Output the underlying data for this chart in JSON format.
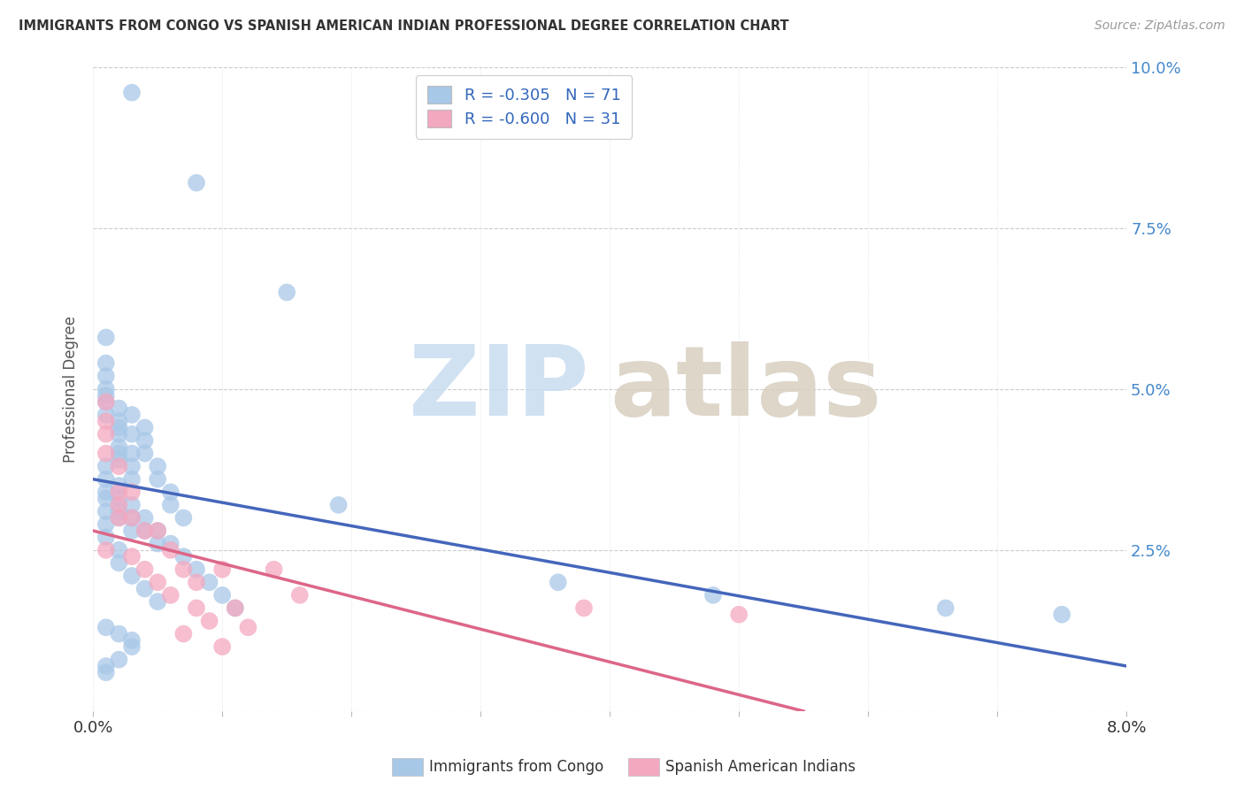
{
  "title": "IMMIGRANTS FROM CONGO VS SPANISH AMERICAN INDIAN PROFESSIONAL DEGREE CORRELATION CHART",
  "source": "Source: ZipAtlas.com",
  "ylabel": "Professional Degree",
  "xlim": [
    0.0,
    0.08
  ],
  "ylim": [
    0.0,
    0.1
  ],
  "xtick_positions": [
    0.0,
    0.01,
    0.02,
    0.03,
    0.04,
    0.05,
    0.06,
    0.07,
    0.08
  ],
  "xtick_labels": [
    "0.0%",
    "",
    "",
    "",
    "",
    "",
    "",
    "",
    "8.0%"
  ],
  "ytick_positions": [
    0.0,
    0.025,
    0.05,
    0.075,
    0.1
  ],
  "ytick_labels": [
    "",
    "2.5%",
    "5.0%",
    "7.5%",
    "10.0%"
  ],
  "legend1_R": "-0.305",
  "legend1_N": "71",
  "legend2_R": "-0.600",
  "legend2_N": "31",
  "blue_color": "#A8C8E8",
  "pink_color": "#F4A8C0",
  "blue_line_color": "#4466BB",
  "pink_line_color": "#DD6688",
  "background_color": "#FFFFFF",
  "blue_line_x": [
    0.0,
    0.08
  ],
  "blue_line_y": [
    0.036,
    0.007
  ],
  "pink_line_x": [
    0.0,
    0.055
  ],
  "pink_line_y": [
    0.028,
    0.0
  ],
  "blue_scatter_x": [
    0.003,
    0.008,
    0.015,
    0.001,
    0.001,
    0.001,
    0.001,
    0.001,
    0.001,
    0.001,
    0.002,
    0.002,
    0.002,
    0.002,
    0.002,
    0.002,
    0.002,
    0.003,
    0.003,
    0.003,
    0.003,
    0.003,
    0.004,
    0.004,
    0.004,
    0.005,
    0.005,
    0.006,
    0.006,
    0.007,
    0.001,
    0.001,
    0.001,
    0.001,
    0.001,
    0.002,
    0.002,
    0.002,
    0.002,
    0.003,
    0.003,
    0.003,
    0.004,
    0.004,
    0.005,
    0.005,
    0.006,
    0.007,
    0.008,
    0.009,
    0.01,
    0.011,
    0.001,
    0.001,
    0.002,
    0.002,
    0.003,
    0.004,
    0.005,
    0.019,
    0.036,
    0.048,
    0.066,
    0.075,
    0.001,
    0.002,
    0.003,
    0.003,
    0.002,
    0.001,
    0.001
  ],
  "blue_scatter_y": [
    0.096,
    0.082,
    0.065,
    0.058,
    0.054,
    0.052,
    0.05,
    0.049,
    0.048,
    0.046,
    0.047,
    0.045,
    0.044,
    0.043,
    0.041,
    0.04,
    0.039,
    0.046,
    0.043,
    0.04,
    0.038,
    0.036,
    0.044,
    0.042,
    0.04,
    0.038,
    0.036,
    0.034,
    0.032,
    0.03,
    0.038,
    0.036,
    0.034,
    0.033,
    0.031,
    0.035,
    0.033,
    0.031,
    0.03,
    0.032,
    0.03,
    0.028,
    0.03,
    0.028,
    0.028,
    0.026,
    0.026,
    0.024,
    0.022,
    0.02,
    0.018,
    0.016,
    0.029,
    0.027,
    0.025,
    0.023,
    0.021,
    0.019,
    0.017,
    0.032,
    0.02,
    0.018,
    0.016,
    0.015,
    0.013,
    0.012,
    0.011,
    0.01,
    0.008,
    0.007,
    0.006
  ],
  "pink_scatter_x": [
    0.001,
    0.001,
    0.001,
    0.001,
    0.001,
    0.002,
    0.002,
    0.002,
    0.002,
    0.003,
    0.003,
    0.003,
    0.004,
    0.004,
    0.005,
    0.005,
    0.006,
    0.006,
    0.007,
    0.007,
    0.008,
    0.008,
    0.009,
    0.01,
    0.01,
    0.011,
    0.012,
    0.014,
    0.016,
    0.038,
    0.05
  ],
  "pink_scatter_y": [
    0.048,
    0.045,
    0.043,
    0.04,
    0.025,
    0.038,
    0.034,
    0.032,
    0.03,
    0.034,
    0.03,
    0.024,
    0.028,
    0.022,
    0.028,
    0.02,
    0.025,
    0.018,
    0.022,
    0.012,
    0.02,
    0.016,
    0.014,
    0.022,
    0.01,
    0.016,
    0.013,
    0.022,
    0.018,
    0.016,
    0.015
  ]
}
